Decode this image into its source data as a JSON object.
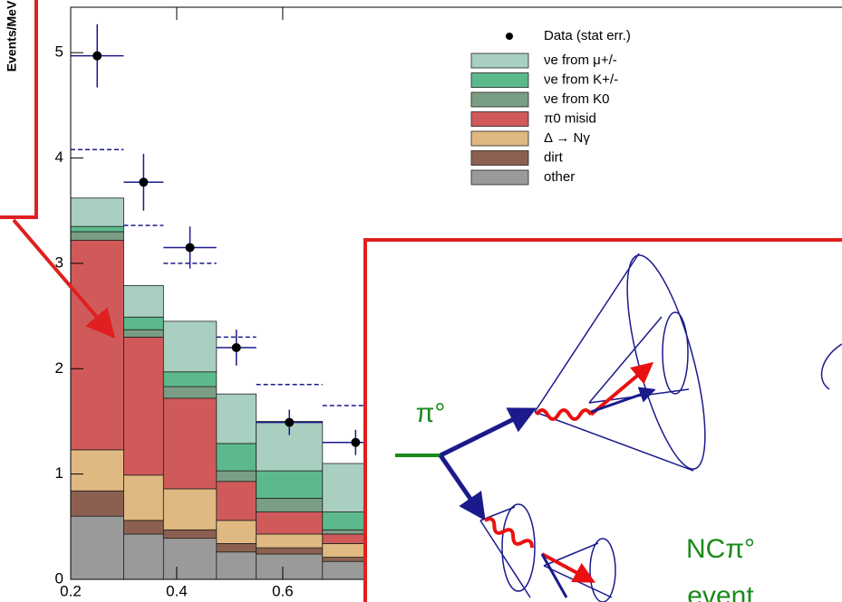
{
  "chart_data": {
    "type": "stacked_histogram",
    "y_label": "Events/MeV",
    "bins": [
      0.2,
      0.3,
      0.375,
      0.475,
      0.55,
      0.675,
      0.8
    ],
    "xlim": [
      0.2,
      1.65
    ],
    "ylim": [
      0,
      5.5
    ],
    "xticks": [
      0.2,
      0.4,
      0.6
    ],
    "yticks": [
      0,
      1,
      2,
      3,
      4,
      5
    ],
    "series": [
      {
        "name": "other",
        "color": "#9a9a9a",
        "values": [
          0.6,
          0.43,
          0.39,
          0.26,
          0.24,
          0.17
        ]
      },
      {
        "name": "dirt",
        "color": "#8c6050",
        "values": [
          0.24,
          0.13,
          0.08,
          0.08,
          0.06,
          0.04
        ]
      },
      {
        "name": "Δ → Nγ",
        "color": "#e0b982",
        "values": [
          0.39,
          0.43,
          0.39,
          0.22,
          0.13,
          0.13
        ]
      },
      {
        "name": "π0 misid",
        "color": "#d05a5a",
        "values": [
          1.99,
          1.31,
          0.86,
          0.37,
          0.21,
          0.09
        ]
      },
      {
        "name": "νe from K0",
        "color": "#7a9e84",
        "values": [
          0.08,
          0.07,
          0.11,
          0.1,
          0.13,
          0.04
        ]
      },
      {
        "name": "νe from K+/-",
        "color": "#5cb98c",
        "values": [
          0.05,
          0.12,
          0.14,
          0.26,
          0.26,
          0.17
        ]
      },
      {
        "name": "νe from μ+/-",
        "color": "#a8cfc0",
        "values": [
          0.27,
          0.3,
          0.48,
          0.47,
          0.47,
          0.46
        ]
      }
    ],
    "dashed_values": [
      4.08,
      3.36,
      3.0,
      2.3,
      1.85,
      1.65
    ],
    "data_points": {
      "name": "Data (stat err.)",
      "values": [
        4.97,
        3.77,
        3.15,
        2.2,
        1.49,
        1.3
      ],
      "errors": [
        0.3,
        0.27,
        0.2,
        0.17,
        0.12,
        0.12
      ]
    },
    "inset": {
      "labels": [
        "π°",
        "NCπ°",
        "event"
      ]
    }
  }
}
